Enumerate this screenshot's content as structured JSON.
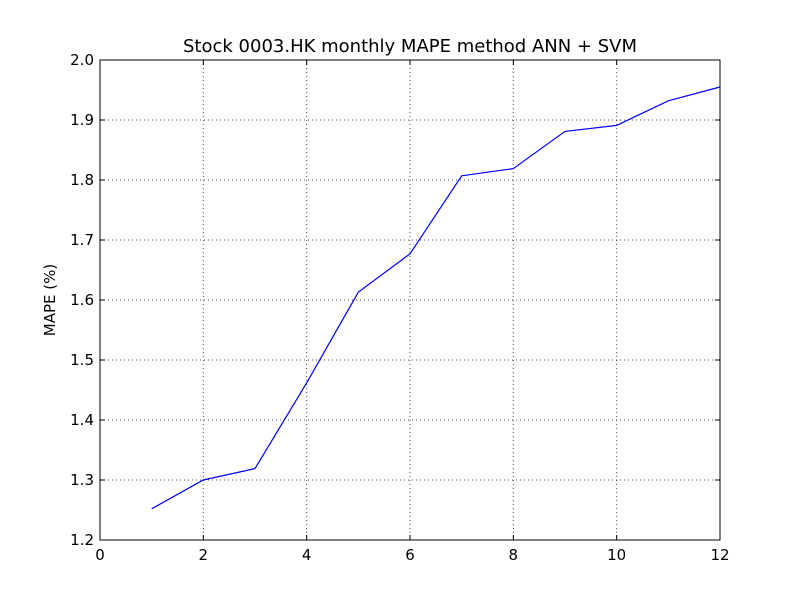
{
  "chart_data": {
    "type": "line",
    "title": "Stock 0003.HK monthly MAPE method ANN + SVM",
    "xlabel": "",
    "ylabel": "MAPE (%)",
    "xlim": [
      0,
      12
    ],
    "ylim": [
      1.2,
      2.0
    ],
    "xticks": [
      0,
      2,
      4,
      6,
      8,
      10,
      12
    ],
    "xtick_labels": [
      "0",
      "2",
      "4",
      "6",
      "8",
      "10",
      "12"
    ],
    "yticks": [
      1.2,
      1.3,
      1.4,
      1.5,
      1.6,
      1.7,
      1.8,
      1.9,
      2.0
    ],
    "ytick_labels": [
      "1.2",
      "1.3",
      "1.4",
      "1.5",
      "1.6",
      "1.7",
      "1.8",
      "1.9",
      "2.0"
    ],
    "grid": true,
    "series": [
      {
        "color": "#0000ff",
        "x": [
          1,
          2,
          3,
          4,
          5,
          6,
          7,
          8,
          9,
          10,
          11,
          12
        ],
        "y": [
          1.252,
          1.3,
          1.319,
          1.462,
          1.613,
          1.677,
          1.807,
          1.819,
          1.881,
          1.891,
          1.932,
          1.955
        ]
      }
    ]
  }
}
